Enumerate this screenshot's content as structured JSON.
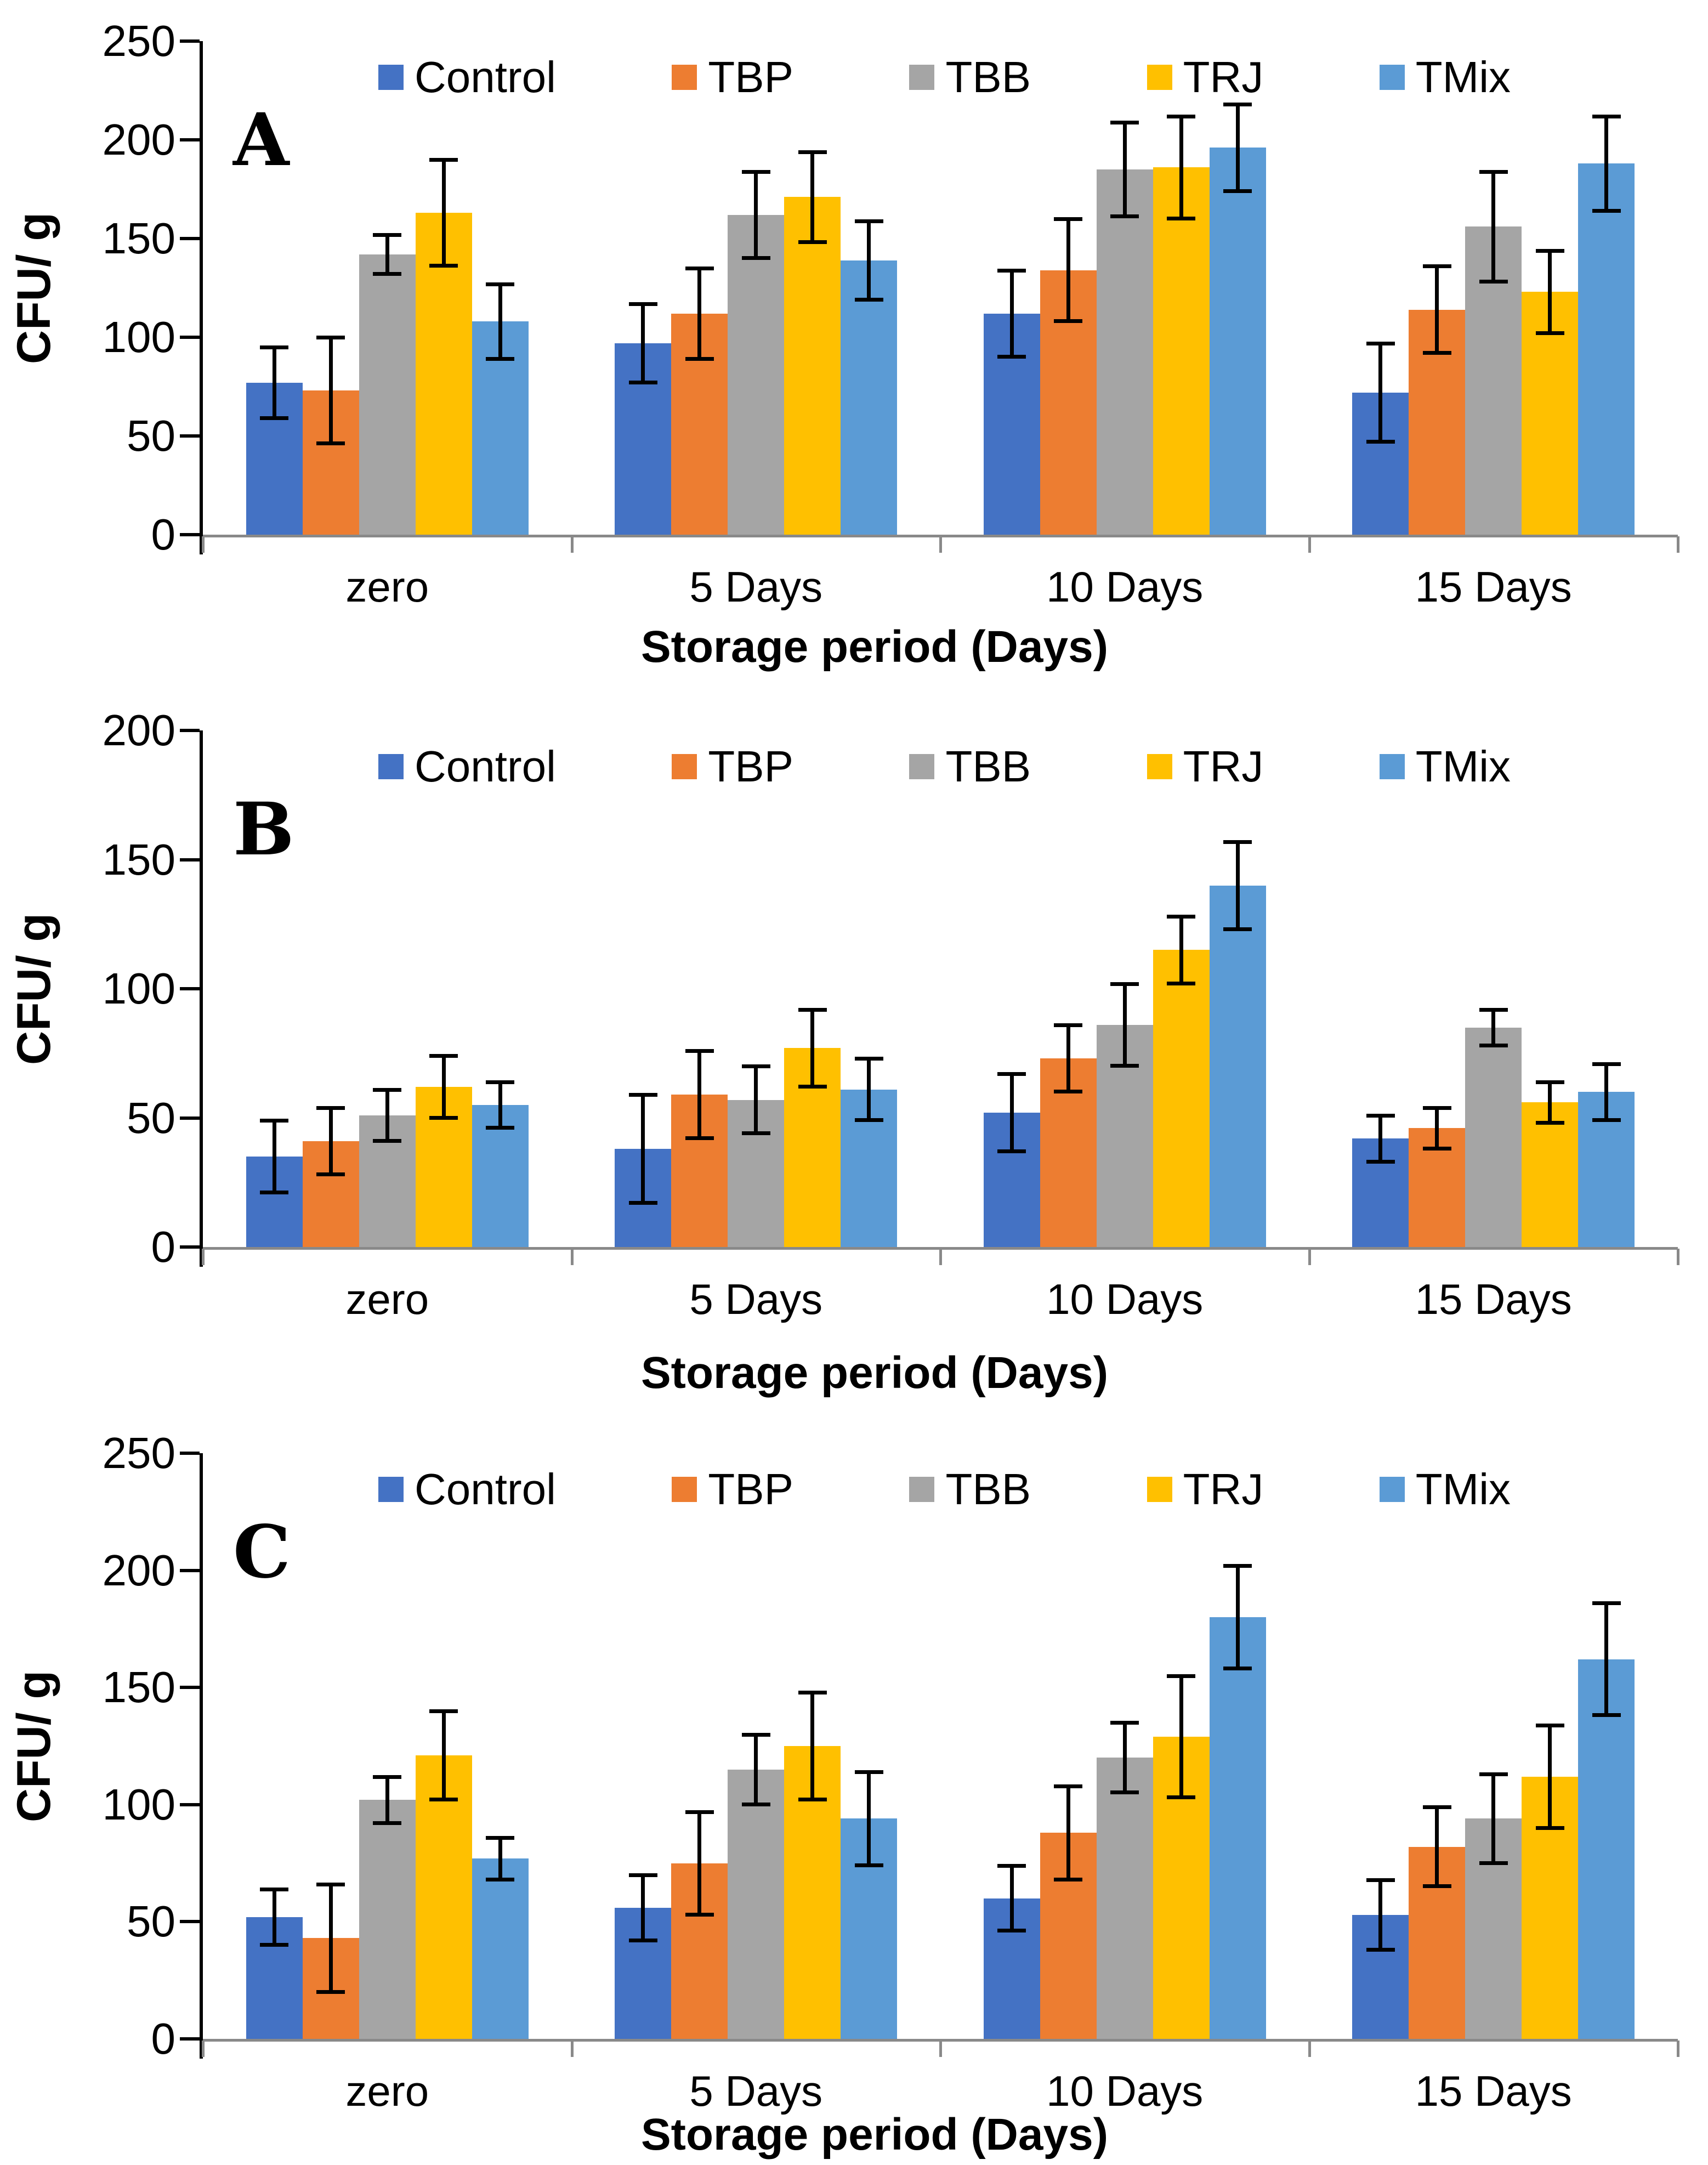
{
  "figure": {
    "y_axis_label": "CFU/ g",
    "x_axis_label": "Storage period (Days)",
    "legend": [
      "Control",
      "TBP",
      "TBB",
      "TRJ",
      "TMix"
    ],
    "colors": {
      "Control": "#4472C4",
      "TBP": "#ED7D31",
      "TBB": "#A5A5A5",
      "TRJ": "#FFC000",
      "TMix": "#5B9BD5",
      "axis_line": "#000000",
      "baseline": "#898989",
      "error_bar": "#000000"
    }
  },
  "chart_data": [
    {
      "type": "bar",
      "panel_label": "A",
      "title": "",
      "xlabel": "Storage period (Days)",
      "ylabel": "CFU/ g",
      "ylim": [
        0,
        250
      ],
      "yticks": [
        0,
        50,
        100,
        150,
        200,
        250
      ],
      "categories": [
        "zero",
        "5 Days",
        "10 Days",
        "15 Days"
      ],
      "grid": false,
      "legend_position": "top-inside",
      "series": [
        {
          "name": "Control",
          "color": "#4472C4",
          "values": [
            77,
            97,
            112,
            72
          ],
          "errors": [
            18,
            20,
            22,
            25
          ]
        },
        {
          "name": "TBP",
          "color": "#ED7D31",
          "values": [
            73,
            112,
            134,
            114
          ],
          "errors": [
            27,
            23,
            26,
            22
          ]
        },
        {
          "name": "TBB",
          "color": "#A5A5A5",
          "values": [
            142,
            162,
            185,
            156
          ],
          "errors": [
            10,
            22,
            24,
            28
          ]
        },
        {
          "name": "TRJ",
          "color": "#FFC000",
          "values": [
            163,
            171,
            186,
            123
          ],
          "errors": [
            27,
            23,
            26,
            21
          ]
        },
        {
          "name": "TMix",
          "color": "#5B9BD5",
          "values": [
            108,
            139,
            196,
            188
          ],
          "errors": [
            19,
            20,
            22,
            24
          ]
        }
      ]
    },
    {
      "type": "bar",
      "panel_label": "B",
      "title": "",
      "xlabel": "Storage period (Days)",
      "ylabel": "CFU/ g",
      "ylim": [
        0,
        200
      ],
      "yticks": [
        0,
        50,
        100,
        150,
        200
      ],
      "categories": [
        "zero",
        "5 Days",
        "10 Days",
        "15 Days"
      ],
      "grid": false,
      "legend_position": "top-inside",
      "series": [
        {
          "name": "Control",
          "color": "#4472C4",
          "values": [
            35,
            38,
            52,
            42
          ],
          "errors": [
            14,
            21,
            15,
            9
          ]
        },
        {
          "name": "TBP",
          "color": "#ED7D31",
          "values": [
            41,
            59,
            73,
            46
          ],
          "errors": [
            13,
            17,
            13,
            8
          ]
        },
        {
          "name": "TBB",
          "color": "#A5A5A5",
          "values": [
            51,
            57,
            86,
            85
          ],
          "errors": [
            10,
            13,
            16,
            7
          ]
        },
        {
          "name": "TRJ",
          "color": "#FFC000",
          "values": [
            62,
            77,
            115,
            56
          ],
          "errors": [
            12,
            15,
            13,
            8
          ]
        },
        {
          "name": "TMix",
          "color": "#5B9BD5",
          "values": [
            55,
            61,
            140,
            60
          ],
          "errors": [
            9,
            12,
            17,
            11
          ]
        }
      ]
    },
    {
      "type": "bar",
      "panel_label": "C",
      "title": "",
      "xlabel": "Storage period (Days)",
      "ylabel": "CFU/ g",
      "ylim": [
        0,
        250
      ],
      "yticks": [
        0,
        50,
        100,
        150,
        200,
        250
      ],
      "categories": [
        "zero",
        "5 Days",
        "10 Days",
        "15 Days"
      ],
      "grid": false,
      "legend_position": "top-inside",
      "series": [
        {
          "name": "Control",
          "color": "#4472C4",
          "values": [
            52,
            56,
            60,
            53
          ],
          "errors": [
            12,
            14,
            14,
            15
          ]
        },
        {
          "name": "TBP",
          "color": "#ED7D31",
          "values": [
            43,
            75,
            88,
            82
          ],
          "errors": [
            23,
            22,
            20,
            17
          ]
        },
        {
          "name": "TBB",
          "color": "#A5A5A5",
          "values": [
            102,
            115,
            120,
            94
          ],
          "errors": [
            10,
            15,
            15,
            19
          ]
        },
        {
          "name": "TRJ",
          "color": "#FFC000",
          "values": [
            121,
            125,
            129,
            112
          ],
          "errors": [
            19,
            23,
            26,
            22
          ]
        },
        {
          "name": "TMix",
          "color": "#5B9BD5",
          "values": [
            77,
            94,
            180,
            162
          ],
          "errors": [
            9,
            20,
            22,
            24
          ]
        }
      ]
    }
  ]
}
